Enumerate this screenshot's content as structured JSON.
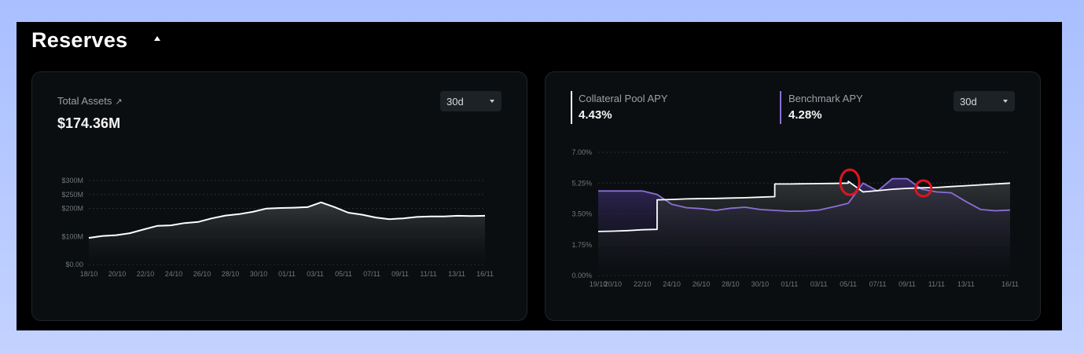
{
  "section": {
    "title": "Reserves"
  },
  "total_assets": {
    "label": "Total Assets",
    "value": "$174.36M",
    "range_select": "30d"
  },
  "apy": {
    "collateral_label": "Collateral Pool APY",
    "collateral_value": "4.43%",
    "benchmark_label": "Benchmark APY",
    "benchmark_value": "4.28%",
    "range_select": "30d"
  },
  "colors": {
    "collateral_line": "#ffffff",
    "benchmark_line": "#8b6fd6",
    "annotation_circle": "#e0141e"
  },
  "chart_data": [
    {
      "type": "area",
      "title": "Total Assets",
      "x_tick_labels": [
        "18/10",
        "20/10",
        "22/10",
        "24/10",
        "26/10",
        "28/10",
        "30/10",
        "01/11",
        "03/11",
        "05/11",
        "07/11",
        "09/11",
        "11/11",
        "13/11",
        "16/11"
      ],
      "y_tick_labels": [
        "$0.00",
        "$100M",
        "$200M",
        "$250M",
        "$300M"
      ],
      "ylim": [
        0,
        300
      ],
      "y_unit": "M USD",
      "grid": true,
      "series": [
        {
          "x": [
            "18/10",
            "19/10",
            "20/10",
            "21/10",
            "22/10",
            "23/10",
            "24/10",
            "25/10",
            "26/10",
            "27/10",
            "28/10",
            "29/10",
            "30/10",
            "31/10",
            "01/11",
            "02/11",
            "03/11",
            "04/11",
            "05/11",
            "06/11",
            "07/11",
            "08/11",
            "09/11",
            "10/11",
            "11/11",
            "12/11",
            "13/11",
            "14/11",
            "15/11",
            "16/11"
          ],
          "values": [
            95,
            102,
            105,
            112,
            125,
            138,
            140,
            148,
            152,
            165,
            175,
            180,
            188,
            200,
            202,
            203,
            205,
            222,
            205,
            185,
            178,
            168,
            162,
            165,
            170,
            172,
            172,
            174,
            173,
            174
          ]
        }
      ]
    },
    {
      "type": "area",
      "title": "",
      "x_tick_labels": [
        "19/10",
        "20/10",
        "22/10",
        "24/10",
        "26/10",
        "28/10",
        "30/10",
        "01/11",
        "03/11",
        "05/11",
        "07/11",
        "09/11",
        "11/11",
        "13/11",
        "16/11"
      ],
      "y_tick_labels": [
        "0.00%",
        "1.75%",
        "3.50%",
        "5.25%",
        "7.00%"
      ],
      "ylim": [
        0,
        7
      ],
      "y_unit": "%",
      "grid": true,
      "series": [
        {
          "name": "Collateral Pool APY",
          "x": [
            "19/10",
            "20/10",
            "21/10",
            "22/10",
            "23/10",
            "23/10",
            "24/10",
            "25/10",
            "26/10",
            "27/10",
            "28/10",
            "29/10",
            "30/10",
            "31/10",
            "31/10",
            "01/11",
            "02/11",
            "03/11",
            "04/11",
            "05/11",
            "05/11",
            "06/11",
            "07/11",
            "08/11",
            "09/11",
            "10/11",
            "11/11",
            "12/11",
            "13/11",
            "14/11",
            "15/11",
            "16/11"
          ],
          "values": [
            2.5,
            2.52,
            2.55,
            2.6,
            2.62,
            4.3,
            4.32,
            4.35,
            4.37,
            4.38,
            4.4,
            4.42,
            4.45,
            4.48,
            5.2,
            5.2,
            5.21,
            5.22,
            5.23,
            5.25,
            5.35,
            4.75,
            4.82,
            4.9,
            4.95,
            4.98,
            5.0,
            5.05,
            5.1,
            5.15,
            5.2,
            5.25
          ]
        },
        {
          "name": "Benchmark APY",
          "x": [
            "19/10",
            "20/10",
            "21/10",
            "22/10",
            "23/10",
            "24/10",
            "25/10",
            "26/10",
            "27/10",
            "28/10",
            "29/10",
            "30/10",
            "31/10",
            "01/11",
            "02/11",
            "03/11",
            "04/11",
            "05/11",
            "06/11",
            "07/11",
            "08/11",
            "09/11",
            "10/11",
            "11/11",
            "12/11",
            "13/11",
            "14/11",
            "15/11",
            "16/11"
          ],
          "values": [
            4.8,
            4.8,
            4.8,
            4.8,
            4.6,
            4.05,
            3.85,
            3.8,
            3.7,
            3.82,
            3.88,
            3.75,
            3.7,
            3.65,
            3.66,
            3.72,
            3.9,
            4.1,
            5.25,
            4.8,
            5.5,
            5.5,
            4.9,
            4.75,
            4.7,
            4.2,
            3.75,
            3.68,
            3.72
          ]
        }
      ],
      "annotations": [
        {
          "shape": "circle",
          "x": "05/11",
          "y": 5.3
        },
        {
          "shape": "circle",
          "x": "10/11",
          "y": 4.95
        }
      ]
    }
  ]
}
